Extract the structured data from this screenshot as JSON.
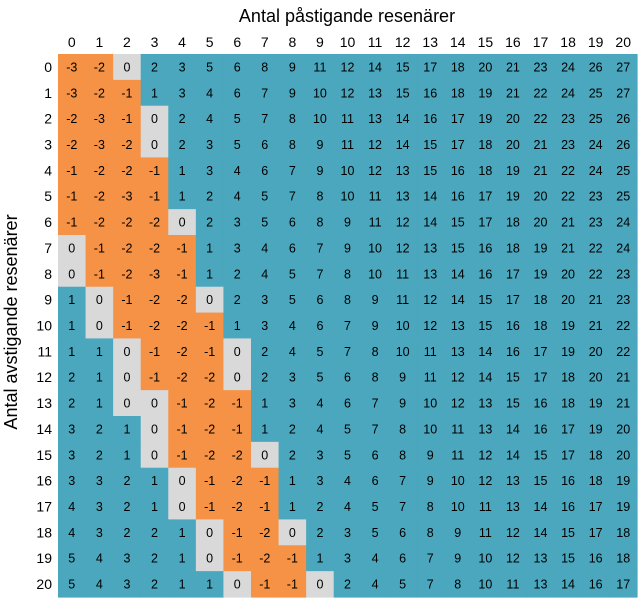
{
  "chart_data": {
    "type": "heatmap",
    "title": "",
    "xlabel": "Antal påstigande resenärer",
    "ylabel": "Antal avstigande resenärer",
    "x": [
      0,
      1,
      2,
      3,
      4,
      5,
      6,
      7,
      8,
      9,
      10,
      11,
      12,
      13,
      14,
      15,
      16,
      17,
      18,
      19,
      20
    ],
    "y": [
      0,
      1,
      2,
      3,
      4,
      5,
      6,
      7,
      8,
      9,
      10,
      11,
      12,
      13,
      14,
      15,
      16,
      17,
      18,
      19,
      20
    ],
    "colors": {
      "negative": "#f59245",
      "zero": "#d9d9d9",
      "positive": "#4aa7bd"
    },
    "values": [
      [
        -3,
        -2,
        0,
        2,
        3,
        5,
        6,
        8,
        9,
        11,
        12,
        14,
        15,
        17,
        18,
        20,
        21,
        23,
        24,
        26,
        27
      ],
      [
        -3,
        -2,
        -1,
        1,
        3,
        4,
        6,
        7,
        9,
        10,
        12,
        13,
        15,
        16,
        18,
        19,
        21,
        22,
        24,
        25,
        27
      ],
      [
        -2,
        -3,
        -1,
        0,
        2,
        4,
        5,
        7,
        8,
        10,
        11,
        13,
        14,
        16,
        17,
        19,
        20,
        22,
        23,
        25,
        26
      ],
      [
        -2,
        -3,
        -2,
        0,
        2,
        3,
        5,
        6,
        8,
        9,
        11,
        12,
        14,
        15,
        17,
        18,
        20,
        21,
        23,
        24,
        26
      ],
      [
        -1,
        -2,
        -2,
        -1,
        1,
        3,
        4,
        6,
        7,
        9,
        10,
        12,
        13,
        15,
        16,
        18,
        19,
        21,
        22,
        24,
        25
      ],
      [
        -1,
        -2,
        -3,
        -1,
        1,
        2,
        4,
        5,
        7,
        8,
        10,
        11,
        13,
        14,
        16,
        17,
        19,
        20,
        22,
        23,
        25
      ],
      [
        -1,
        -2,
        -2,
        -2,
        0,
        2,
        3,
        5,
        6,
        8,
        9,
        11,
        12,
        14,
        15,
        17,
        18,
        20,
        21,
        23,
        24
      ],
      [
        0,
        -1,
        -2,
        -2,
        -1,
        1,
        3,
        4,
        6,
        7,
        9,
        10,
        12,
        13,
        15,
        16,
        18,
        19,
        21,
        22,
        24
      ],
      [
        0,
        -1,
        -2,
        -3,
        -1,
        1,
        2,
        4,
        5,
        7,
        8,
        10,
        11,
        13,
        14,
        16,
        17,
        19,
        20,
        22,
        23
      ],
      [
        1,
        0,
        -1,
        -2,
        -2,
        0,
        2,
        3,
        5,
        6,
        8,
        9,
        11,
        12,
        14,
        15,
        17,
        18,
        20,
        21,
        23
      ],
      [
        1,
        0,
        -1,
        -2,
        -2,
        -1,
        1,
        3,
        4,
        6,
        7,
        9,
        10,
        12,
        13,
        15,
        16,
        18,
        19,
        21,
        22
      ],
      [
        1,
        1,
        0,
        -1,
        -2,
        -1,
        0,
        2,
        4,
        5,
        7,
        8,
        10,
        11,
        13,
        14,
        16,
        17,
        19,
        20,
        22
      ],
      [
        2,
        1,
        0,
        -1,
        -2,
        -2,
        0,
        2,
        3,
        5,
        6,
        8,
        9,
        11,
        12,
        14,
        15,
        17,
        18,
        20,
        21
      ],
      [
        2,
        1,
        0,
        0,
        -1,
        -2,
        -1,
        1,
        3,
        4,
        6,
        7,
        9,
        10,
        12,
        13,
        15,
        16,
        18,
        19,
        21
      ],
      [
        3,
        2,
        1,
        0,
        -1,
        -2,
        -1,
        1,
        2,
        4,
        5,
        7,
        8,
        10,
        11,
        13,
        14,
        16,
        17,
        19,
        20
      ],
      [
        3,
        2,
        1,
        0,
        -1,
        -2,
        -2,
        0,
        2,
        3,
        5,
        6,
        8,
        9,
        11,
        12,
        14,
        15,
        17,
        18,
        20
      ],
      [
        3,
        3,
        2,
        1,
        0,
        -1,
        -2,
        -1,
        1,
        3,
        4,
        6,
        7,
        9,
        10,
        12,
        13,
        15,
        16,
        18,
        19
      ],
      [
        4,
        3,
        2,
        1,
        0,
        -1,
        -2,
        -1,
        1,
        2,
        4,
        5,
        7,
        8,
        10,
        11,
        13,
        14,
        16,
        17,
        19
      ],
      [
        4,
        3,
        2,
        2,
        1,
        0,
        -1,
        -2,
        0,
        2,
        3,
        5,
        6,
        8,
        9,
        11,
        12,
        14,
        15,
        17,
        18
      ],
      [
        5,
        4,
        3,
        2,
        1,
        0,
        -1,
        -2,
        -1,
        1,
        3,
        4,
        6,
        7,
        9,
        10,
        12,
        13,
        15,
        16,
        18
      ],
      [
        5,
        4,
        3,
        2,
        1,
        1,
        0,
        -1,
        -1,
        0,
        2,
        4,
        5,
        7,
        8,
        10,
        11,
        13,
        14,
        16,
        17
      ]
    ]
  }
}
